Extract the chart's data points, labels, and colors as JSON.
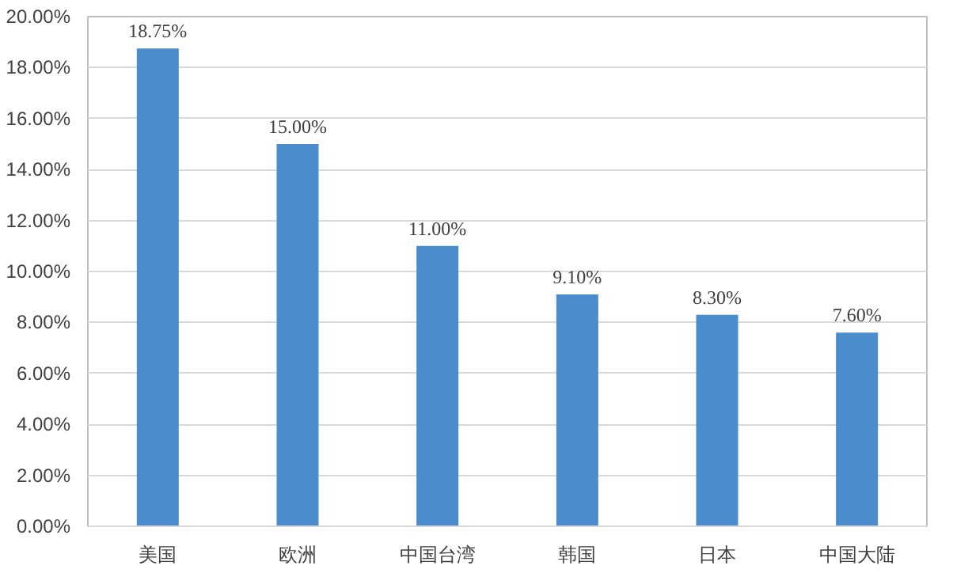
{
  "chart_data": {
    "type": "bar",
    "categories": [
      "美国",
      "欧洲",
      "中国台湾",
      "韩国",
      "日本",
      "中国大陆"
    ],
    "values": [
      18.75,
      15.0,
      11.0,
      9.1,
      8.3,
      7.6
    ],
    "value_labels": [
      "18.75%",
      "15.00%",
      "11.00%",
      "9.10%",
      "8.30%",
      "7.60%"
    ],
    "color": "#4a8ccc",
    "ylim": [
      0,
      20
    ],
    "yticks": [
      {
        "value": 0,
        "label": "0.00%"
      },
      {
        "value": 2,
        "label": "2.00%"
      },
      {
        "value": 4,
        "label": "4.00%"
      },
      {
        "value": 6,
        "label": "6.00%"
      },
      {
        "value": 8,
        "label": "8.00%"
      },
      {
        "value": 10,
        "label": "10.00%"
      },
      {
        "value": 12,
        "label": "12.00%"
      },
      {
        "value": 14,
        "label": "14.00%"
      },
      {
        "value": 16,
        "label": "16.00%"
      },
      {
        "value": 18,
        "label": "18.00%"
      },
      {
        "value": 20,
        "label": "20.00%"
      }
    ],
    "grid": "y"
  }
}
